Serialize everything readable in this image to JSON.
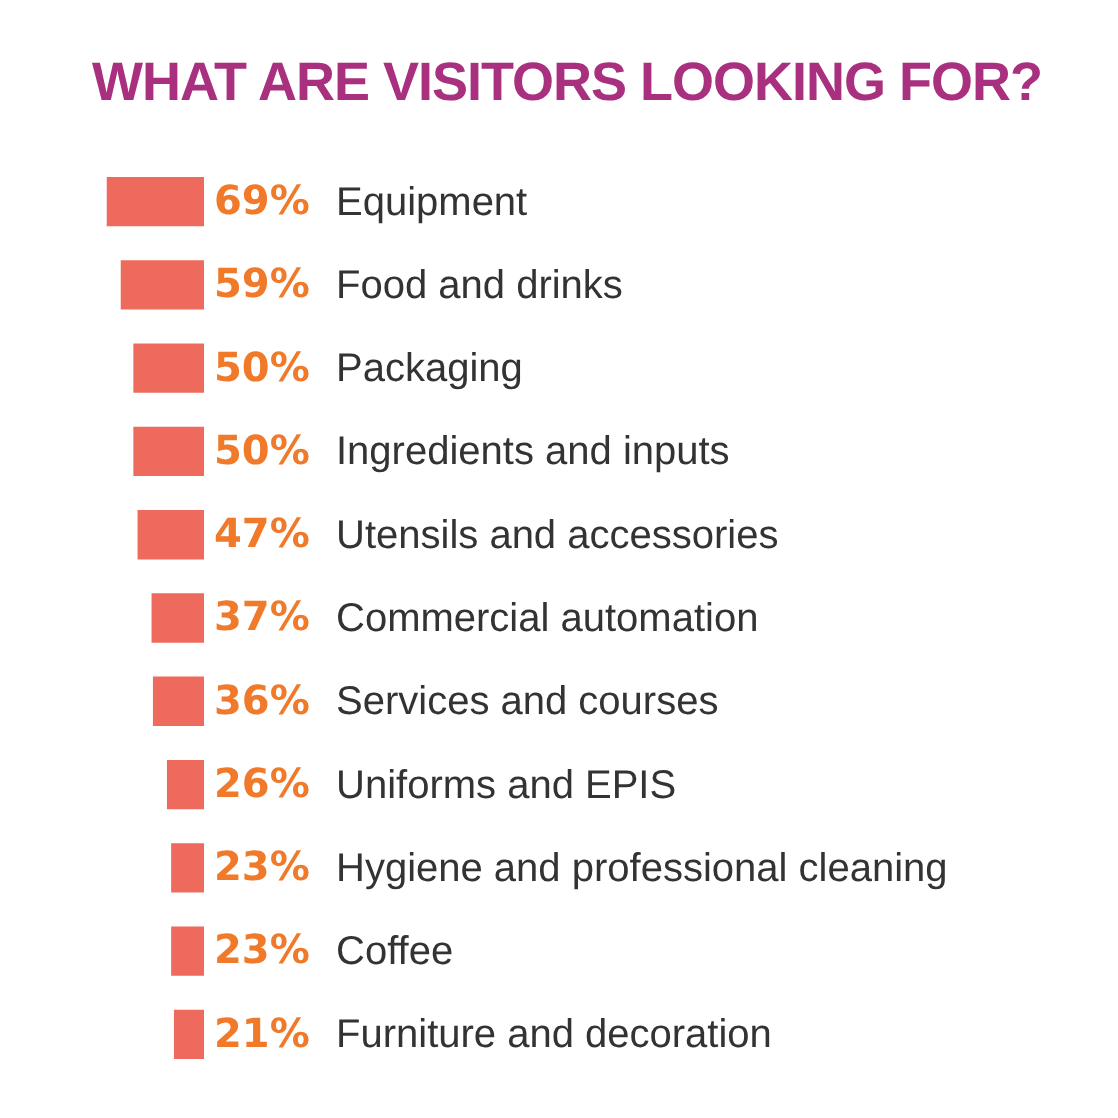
{
  "chart_data": {
    "type": "bar",
    "orientation": "horizontal",
    "title": "WHAT ARE VISITORS LOOKING FOR?",
    "categories": [
      "Equipment",
      "Food and drinks",
      "Packaging",
      "Ingredients and inputs",
      "Utensils and accessories",
      "Commercial automation",
      "Services and courses",
      "Uniforms and EPIS",
      "Hygiene and professional cleaning",
      "Coffee",
      "Furniture and decoration"
    ],
    "values": [
      69,
      59,
      50,
      50,
      47,
      37,
      36,
      26,
      23,
      23,
      21
    ],
    "value_labels": [
      "69%",
      "59%",
      "50%",
      "50%",
      "47%",
      "37%",
      "36%",
      "26%",
      "23%",
      "23%",
      "21%"
    ],
    "color": "#ee6a5c",
    "tick_labels": false
  }
}
